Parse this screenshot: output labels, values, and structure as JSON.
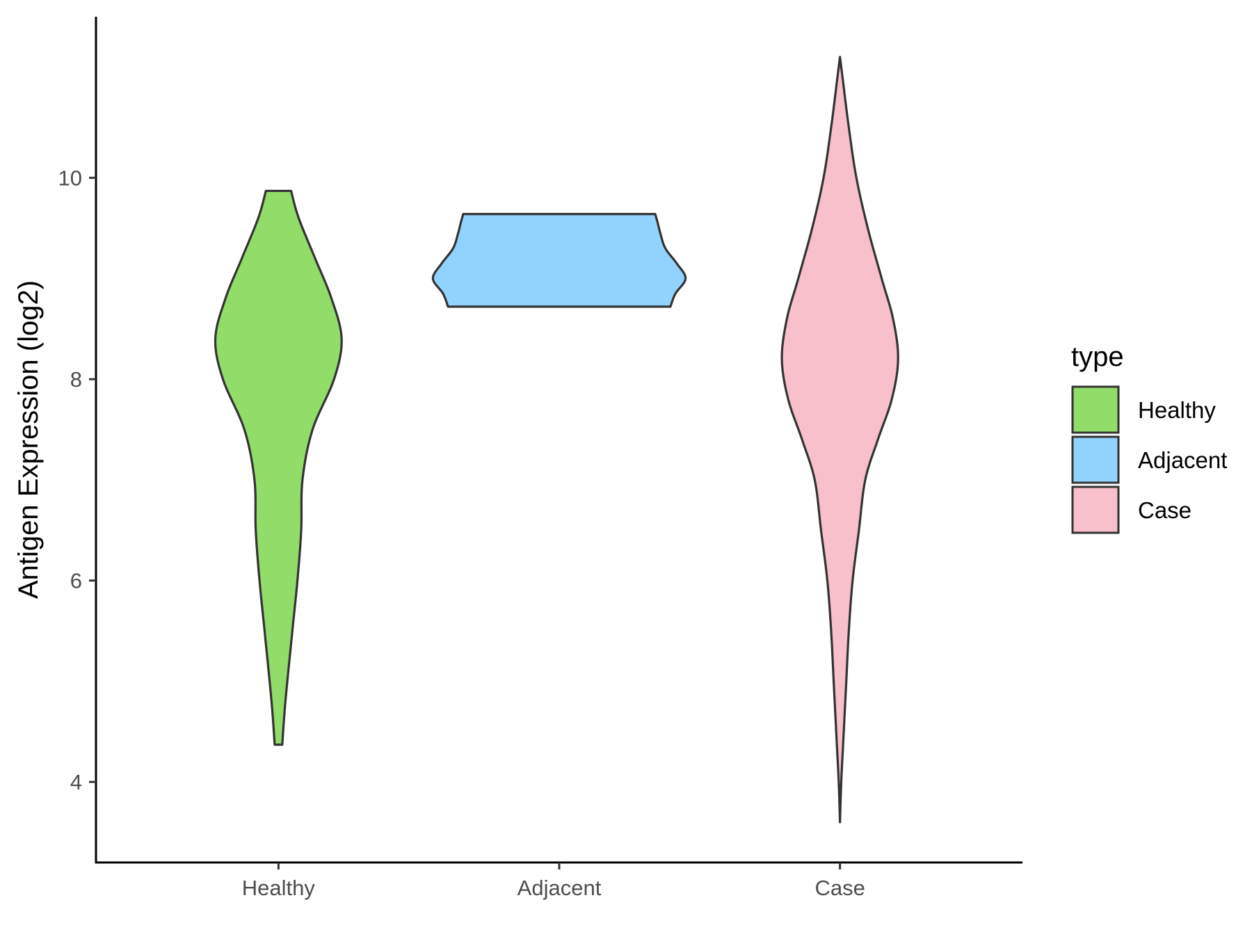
{
  "chart_data": {
    "type": "violin",
    "title": "",
    "xlabel": "",
    "ylabel": "Antigen Expression (log2)",
    "ylim": [
      3.2,
      11.6
    ],
    "yticks": [
      4,
      6,
      8,
      10
    ],
    "categories": [
      "Healthy",
      "Adjacent",
      "Case"
    ],
    "grid": false,
    "legend": {
      "title": "type",
      "position": "right",
      "entries": [
        "Healthy",
        "Adjacent",
        "Case"
      ]
    },
    "colors": {
      "Healthy": "#92DC6A",
      "Adjacent": "#92D3FE",
      "Case": "#F7C0CB",
      "outline": "#333333"
    },
    "series": [
      {
        "name": "Healthy",
        "min": 4.37,
        "max": 9.87,
        "density": [
          [
            4.37,
            0.03
          ],
          [
            4.8,
            0.055
          ],
          [
            5.5,
            0.11
          ],
          [
            6.0,
            0.15
          ],
          [
            6.5,
            0.18
          ],
          [
            7.0,
            0.19
          ],
          [
            7.5,
            0.27
          ],
          [
            8.0,
            0.44
          ],
          [
            8.4,
            0.5
          ],
          [
            8.8,
            0.42
          ],
          [
            9.2,
            0.29
          ],
          [
            9.6,
            0.16
          ],
          [
            9.87,
            0.1
          ]
        ]
      },
      {
        "name": "Adjacent",
        "min": 8.72,
        "max": 9.64,
        "density": [
          [
            8.72,
            0.88
          ],
          [
            8.85,
            0.92
          ],
          [
            9.0,
            1.0
          ],
          [
            9.15,
            0.93
          ],
          [
            9.3,
            0.84
          ],
          [
            9.45,
            0.8
          ],
          [
            9.55,
            0.78
          ],
          [
            9.64,
            0.76
          ]
        ]
      },
      {
        "name": "Case",
        "min": 3.6,
        "max": 11.2,
        "density": [
          [
            3.6,
            0.0
          ],
          [
            4.0,
            0.01
          ],
          [
            4.5,
            0.03
          ],
          [
            5.0,
            0.05
          ],
          [
            5.5,
            0.07
          ],
          [
            6.0,
            0.1
          ],
          [
            6.5,
            0.15
          ],
          [
            7.0,
            0.2
          ],
          [
            7.4,
            0.3
          ],
          [
            7.8,
            0.41
          ],
          [
            8.2,
            0.46
          ],
          [
            8.6,
            0.42
          ],
          [
            9.0,
            0.33
          ],
          [
            9.5,
            0.22
          ],
          [
            10.0,
            0.13
          ],
          [
            10.5,
            0.07
          ],
          [
            11.0,
            0.02
          ],
          [
            11.2,
            0.0
          ]
        ]
      }
    ]
  }
}
